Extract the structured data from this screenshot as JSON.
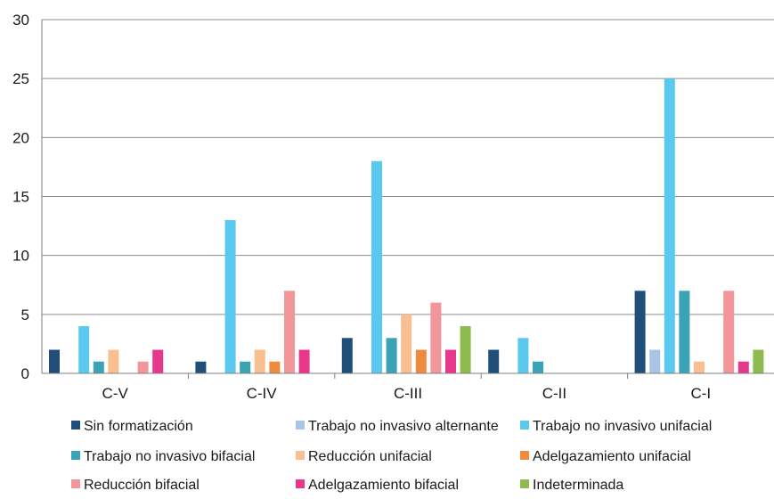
{
  "chart_data": {
    "type": "bar",
    "categories": [
      "C-V",
      "C-IV",
      "C-III",
      "C-II",
      "C-I"
    ],
    "ylim": [
      0,
      30
    ],
    "yticks": [
      0,
      5,
      10,
      15,
      20,
      25,
      30
    ],
    "grid": true,
    "legend_position": "bottom",
    "series": [
      {
        "name": "Sin formatización",
        "color": "#1f4e79",
        "values": [
          2,
          1,
          3,
          2,
          7
        ]
      },
      {
        "name": "Trabajo no invasivo alternante",
        "color": "#a9c4e4",
        "values": [
          0,
          0,
          0,
          0,
          2
        ]
      },
      {
        "name": "Trabajo no invasivo unifacial",
        "color": "#5bc8ef",
        "values": [
          4,
          13,
          18,
          3,
          25
        ]
      },
      {
        "name": "Trabajo no invasivo bifacial",
        "color": "#3aa3b5",
        "values": [
          1,
          1,
          3,
          1,
          7
        ]
      },
      {
        "name": "Reducción unifacial",
        "color": "#f9bf90",
        "values": [
          2,
          2,
          5,
          0,
          1
        ]
      },
      {
        "name": "Adelgazamiento unifacial",
        "color": "#f08a3c",
        "values": [
          0,
          1,
          2,
          0,
          0
        ]
      },
      {
        "name": "Reducción bifacial",
        "color": "#f2969a",
        "values": [
          1,
          7,
          6,
          0,
          7
        ]
      },
      {
        "name": "Adelgazamiento bifacial",
        "color": "#e8388c",
        "values": [
          2,
          2,
          2,
          0,
          1
        ]
      },
      {
        "name": "Indeterminada",
        "color": "#8dbb4e",
        "values": [
          0,
          0,
          4,
          0,
          2
        ]
      }
    ]
  }
}
